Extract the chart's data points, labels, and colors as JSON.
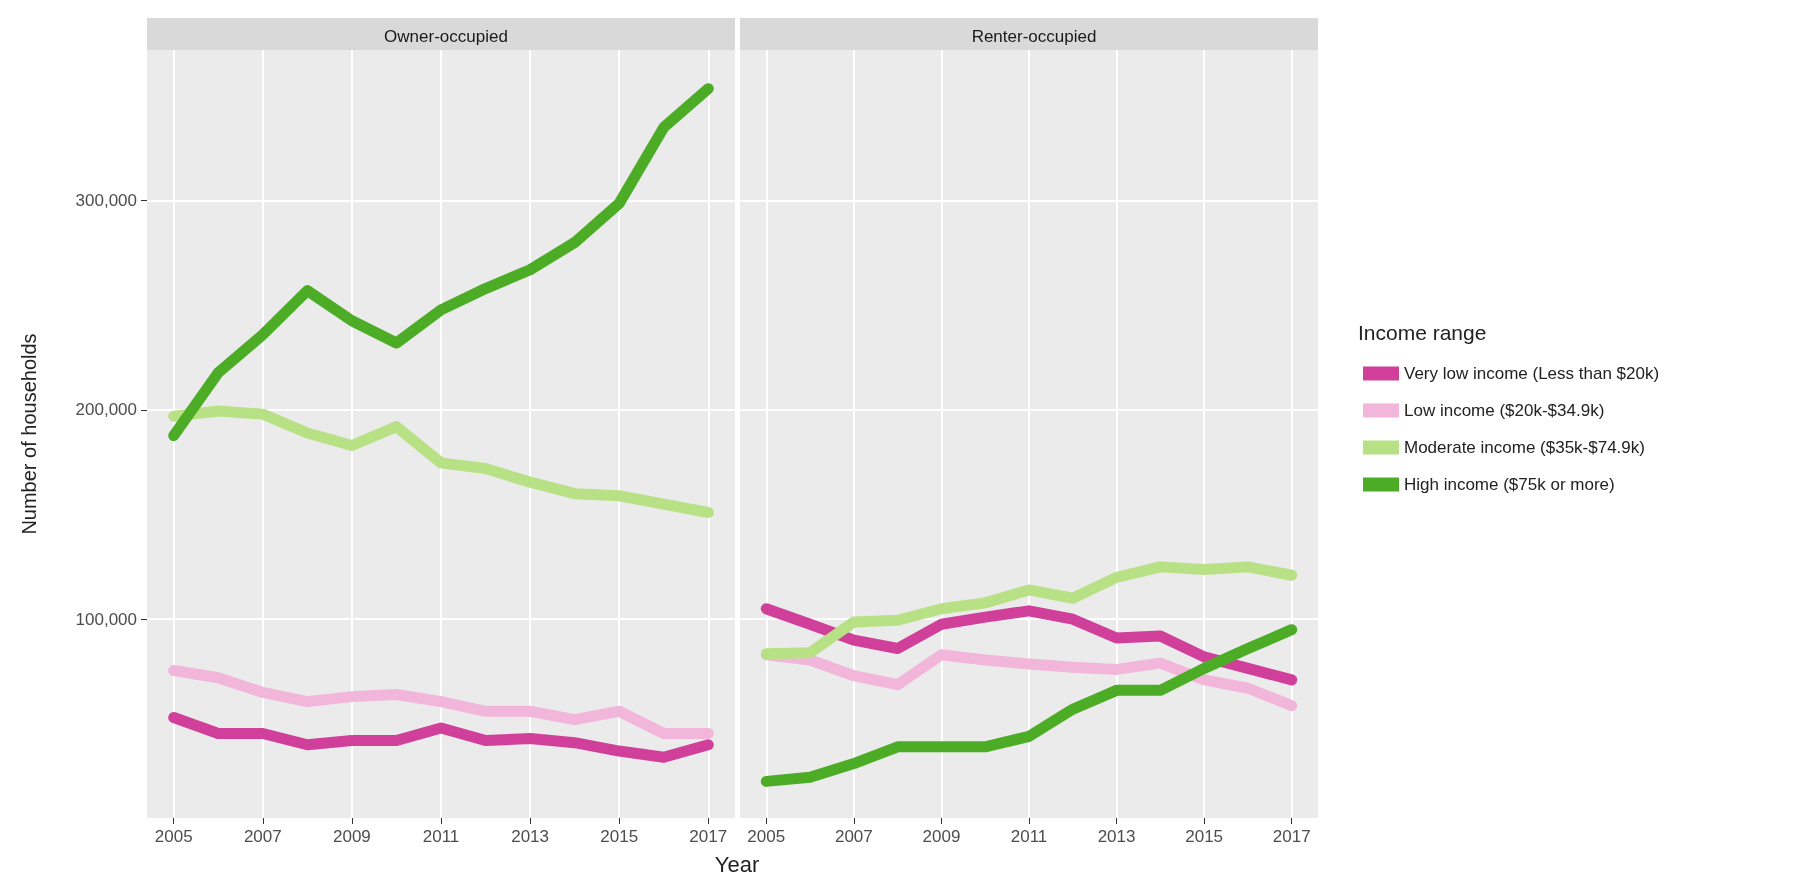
{
  "chart_data": [
    {
      "type": "line",
      "title": "Owner-occupied",
      "xlabel": "Year",
      "ylabel": "Number of households",
      "x": [
        2005,
        2006,
        2007,
        2008,
        2009,
        2010,
        2011,
        2012,
        2013,
        2014,
        2015,
        2016,
        2017
      ],
      "series": [
        {
          "color": "#d0409a",
          "values": [
            53000,
            45400,
            45400,
            40000,
            42000,
            42000,
            48000,
            42000,
            43000,
            41000,
            37000,
            34000,
            40000
          ]
        },
        {
          "color": "#f1b6da",
          "values": [
            75500,
            72000,
            65000,
            60600,
            63000,
            64000,
            60600,
            56000,
            56000,
            52000,
            56000,
            45400,
            45400
          ]
        },
        {
          "color": "#b8e186",
          "values": [
            197000,
            199500,
            198000,
            189000,
            183000,
            192000,
            174700,
            172000,
            165500,
            160000,
            159000,
            155000,
            151000
          ]
        },
        {
          "color": "#4dac26",
          "values": [
            187700,
            217800,
            236000,
            257000,
            242600,
            232000,
            247800,
            258000,
            267000,
            280000,
            298700,
            335000,
            353500
          ]
        }
      ],
      "xlim": [
        2004.4,
        2017.6
      ],
      "xticks": [
        2005,
        2007,
        2009,
        2011,
        2013,
        2015,
        2017
      ],
      "ylim": [
        5000,
        372000
      ],
      "yticks": [
        {
          "value": 100000,
          "label": "100,000"
        },
        {
          "value": 200000,
          "label": "200,000"
        },
        {
          "value": 300000,
          "label": "300,000"
        }
      ],
      "grid": true,
      "legend": false,
      "marker": "none",
      "line_style": "solid"
    },
    {
      "type": "line",
      "title": "Renter-occupied",
      "legend_title": "Income range",
      "x": [
        2005,
        2006,
        2007,
        2008,
        2009,
        2010,
        2011,
        2012,
        2013,
        2014,
        2015,
        2016,
        2017
      ],
      "series": [
        {
          "name": "Very low income (Less than $20k)",
          "color": "#d0409a",
          "values": [
            105000,
            97600,
            90000,
            86000,
            97600,
            101000,
            104000,
            100000,
            91000,
            92000,
            82000,
            76500,
            71000
          ]
        },
        {
          "name": "Low income ($20k-$34.9k)",
          "color": "#f1b6da",
          "values": [
            83000,
            80500,
            73000,
            68700,
            83000,
            80500,
            78600,
            77000,
            76000,
            79000,
            71000,
            67000,
            58700
          ]
        },
        {
          "name": "Moderate income ($35k-$74.9k)",
          "color": "#b8e186",
          "values": [
            83500,
            84000,
            98700,
            99500,
            105000,
            107800,
            114000,
            110000,
            120000,
            125000,
            123800,
            125000,
            121000
          ]
        },
        {
          "name": "High income ($75k or more)",
          "color": "#4dac26",
          "values": [
            22500,
            24500,
            31000,
            39000,
            39000,
            39000,
            44000,
            57000,
            66000,
            66000,
            76500,
            86000,
            95000
          ]
        }
      ],
      "xlim": [
        2004.4,
        2017.6
      ],
      "xticks": [
        2005,
        2007,
        2009,
        2011,
        2013,
        2015,
        2017
      ],
      "ylim": [
        5000,
        372000
      ],
      "yticks": [
        100000,
        200000,
        300000
      ],
      "tick_labels": "x",
      "grid": true,
      "legend": "right",
      "marker": "none",
      "line_style": "solid"
    }
  ]
}
